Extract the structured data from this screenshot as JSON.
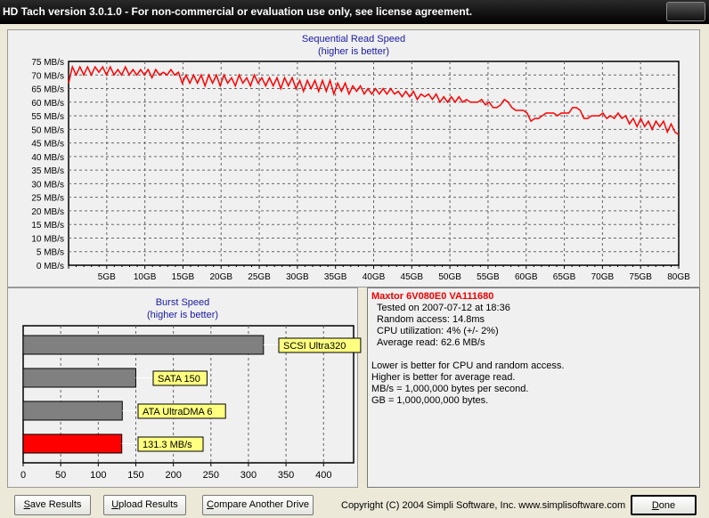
{
  "window": {
    "title": "HD Tach version 3.0.1.0  - For non-commercial or evaluation use only, see license agreement."
  },
  "chart_data": [
    {
      "type": "line",
      "title": "Sequential Read Speed",
      "subtitle": "(higher is better)",
      "xlabel": "",
      "ylabel": "",
      "ylim": [
        0,
        75
      ],
      "xlim": [
        0,
        80
      ],
      "grid": true,
      "yticks": [
        "0 MB/s",
        "5 MB/s",
        "10 MB/s",
        "15 MB/s",
        "20 MB/s",
        "25 MB/s",
        "30 MB/s",
        "35 MB/s",
        "40 MB/s",
        "45 MB/s",
        "50 MB/s",
        "55 MB/s",
        "60 MB/s",
        "65 MB/s",
        "70 MB/s",
        "75 MB/s"
      ],
      "xticks": [
        "5GB",
        "10GB",
        "15GB",
        "20GB",
        "25GB",
        "30GB",
        "35GB",
        "40GB",
        "45GB",
        "50GB",
        "55GB",
        "60GB",
        "65GB",
        "70GB",
        "75GB",
        "80GB"
      ],
      "series": [
        {
          "name": "Read",
          "color": "#ff0000",
          "x_step_gb": 0.5,
          "values": [
            67,
            73,
            70,
            73,
            70,
            73,
            70,
            73,
            71,
            73,
            70,
            73,
            70,
            72,
            70,
            73,
            70,
            72,
            70,
            72,
            70,
            72,
            69,
            72,
            70,
            71,
            70,
            72,
            70,
            71,
            67,
            70,
            67,
            70,
            67,
            70,
            66,
            70,
            67,
            70,
            66,
            70,
            67,
            69,
            66,
            70,
            67,
            69,
            66,
            70,
            67,
            69,
            66,
            69,
            66,
            69,
            65,
            69,
            66,
            69,
            65,
            68,
            64,
            68,
            65,
            68,
            64,
            68,
            64,
            68,
            63,
            67,
            64,
            67,
            63,
            66,
            64,
            66,
            63,
            65,
            63,
            65,
            63,
            65,
            63,
            65,
            63,
            64,
            62,
            64,
            62,
            64,
            61,
            63,
            62,
            63,
            61,
            63,
            60,
            62,
            60,
            62,
            60,
            62,
            60,
            61,
            60,
            60,
            60,
            61,
            59,
            60,
            58,
            58,
            59,
            61,
            60,
            58,
            57,
            57,
            57,
            56,
            53,
            54,
            54,
            55,
            56,
            56,
            56,
            55,
            56,
            56,
            56,
            58,
            58,
            57,
            54,
            54,
            55,
            55,
            55,
            56,
            54,
            55,
            54,
            56,
            54,
            55,
            52,
            54,
            51,
            54,
            51,
            53,
            50,
            53,
            51,
            53,
            49,
            52,
            49,
            48
          ]
        }
      ]
    },
    {
      "type": "bar",
      "orientation": "horizontal",
      "title": "Burst Speed",
      "subtitle": "(higher is better)",
      "xlim": [
        0,
        440
      ],
      "xticks": [
        "0",
        "50",
        "100",
        "150",
        "200",
        "250",
        "300",
        "350",
        "400"
      ],
      "categories": [
        "SCSI Ultra320",
        "SATA 150",
        "ATA UltraDMA 6",
        "131.3 MB/s"
      ],
      "values": [
        320,
        150,
        132,
        131.3
      ],
      "colors": [
        "#808080",
        "#808080",
        "#808080",
        "#ff0000"
      ]
    }
  ],
  "info": {
    "drive": "Maxtor 6V080E0 VA111680",
    "tested": "Tested on 2007-07-12 at 18:36",
    "random": "Random access: 14.8ms",
    "cpu": "CPU utilization: 4% (+/- 2%)",
    "avg": "Average read: 62.6 MB/s",
    "notes": [
      "Lower is better for CPU and random access.",
      "Higher is better for average read.",
      "MB/s = 1,000,000 bytes per second.",
      "GB = 1,000,000,000 bytes."
    ]
  },
  "buttons": {
    "save_key": "S",
    "save_rest": "ave Results",
    "upload_key": "U",
    "upload_rest": "pload Results",
    "compare_key": "C",
    "compare_rest": "ompare Another Drive",
    "done_key": "D",
    "done_rest": "one"
  },
  "copyright": "Copyright (C) 2004 Simpli Software, Inc. www.simplisoftware.com"
}
